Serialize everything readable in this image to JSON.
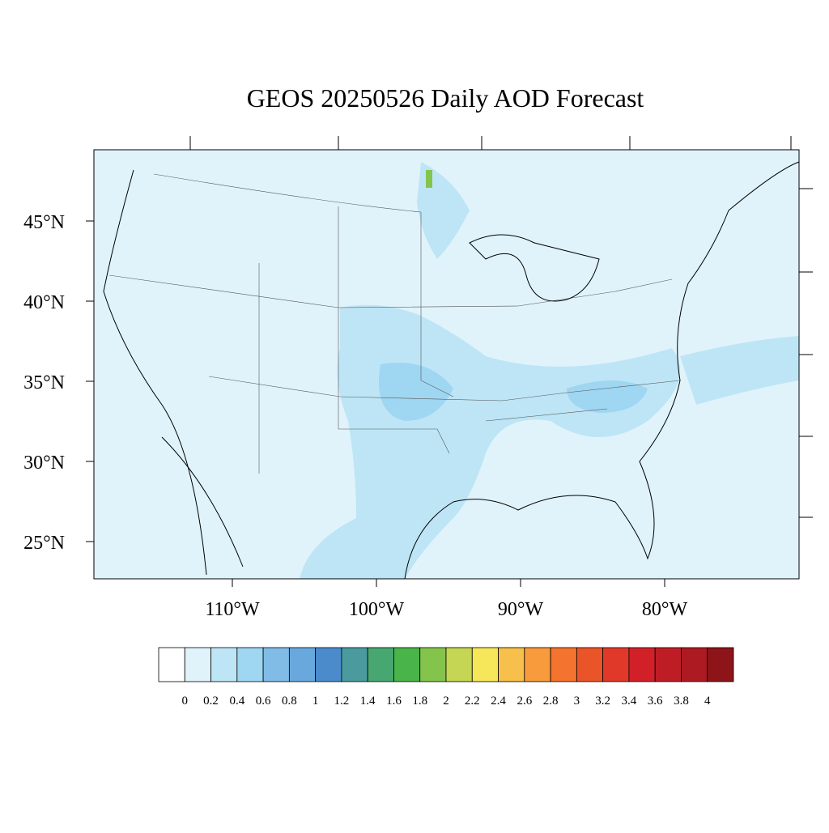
{
  "title": "GEOS 20250526 Daily AOD Forecast",
  "lat_labels": [
    "45°N",
    "40°N",
    "35°N",
    "30°N",
    "25°N"
  ],
  "lon_labels": [
    "110°W",
    "100°W",
    "90°W",
    "80°W"
  ],
  "colorbar": {
    "levels": [
      0,
      0.2,
      0.4,
      0.6,
      0.8,
      1,
      1.2,
      1.4,
      1.6,
      1.8,
      2,
      2.2,
      2.4,
      2.6,
      2.8,
      3,
      3.2,
      3.4,
      3.6,
      3.8,
      4
    ],
    "colors": [
      "#ffffff",
      "#e0f3fb",
      "#bde5f6",
      "#9fd6f1",
      "#80bce6",
      "#68a8dc",
      "#4b8bcb",
      "#4a9a9e",
      "#48a671",
      "#49b449",
      "#85c44c",
      "#c5d654",
      "#f6e65a",
      "#f7bf4b",
      "#f79b3d",
      "#f4732e",
      "#ea5429",
      "#e0392a",
      "#d22029",
      "#bf1d26",
      "#ad1a22",
      "#8d1519"
    ]
  }
}
